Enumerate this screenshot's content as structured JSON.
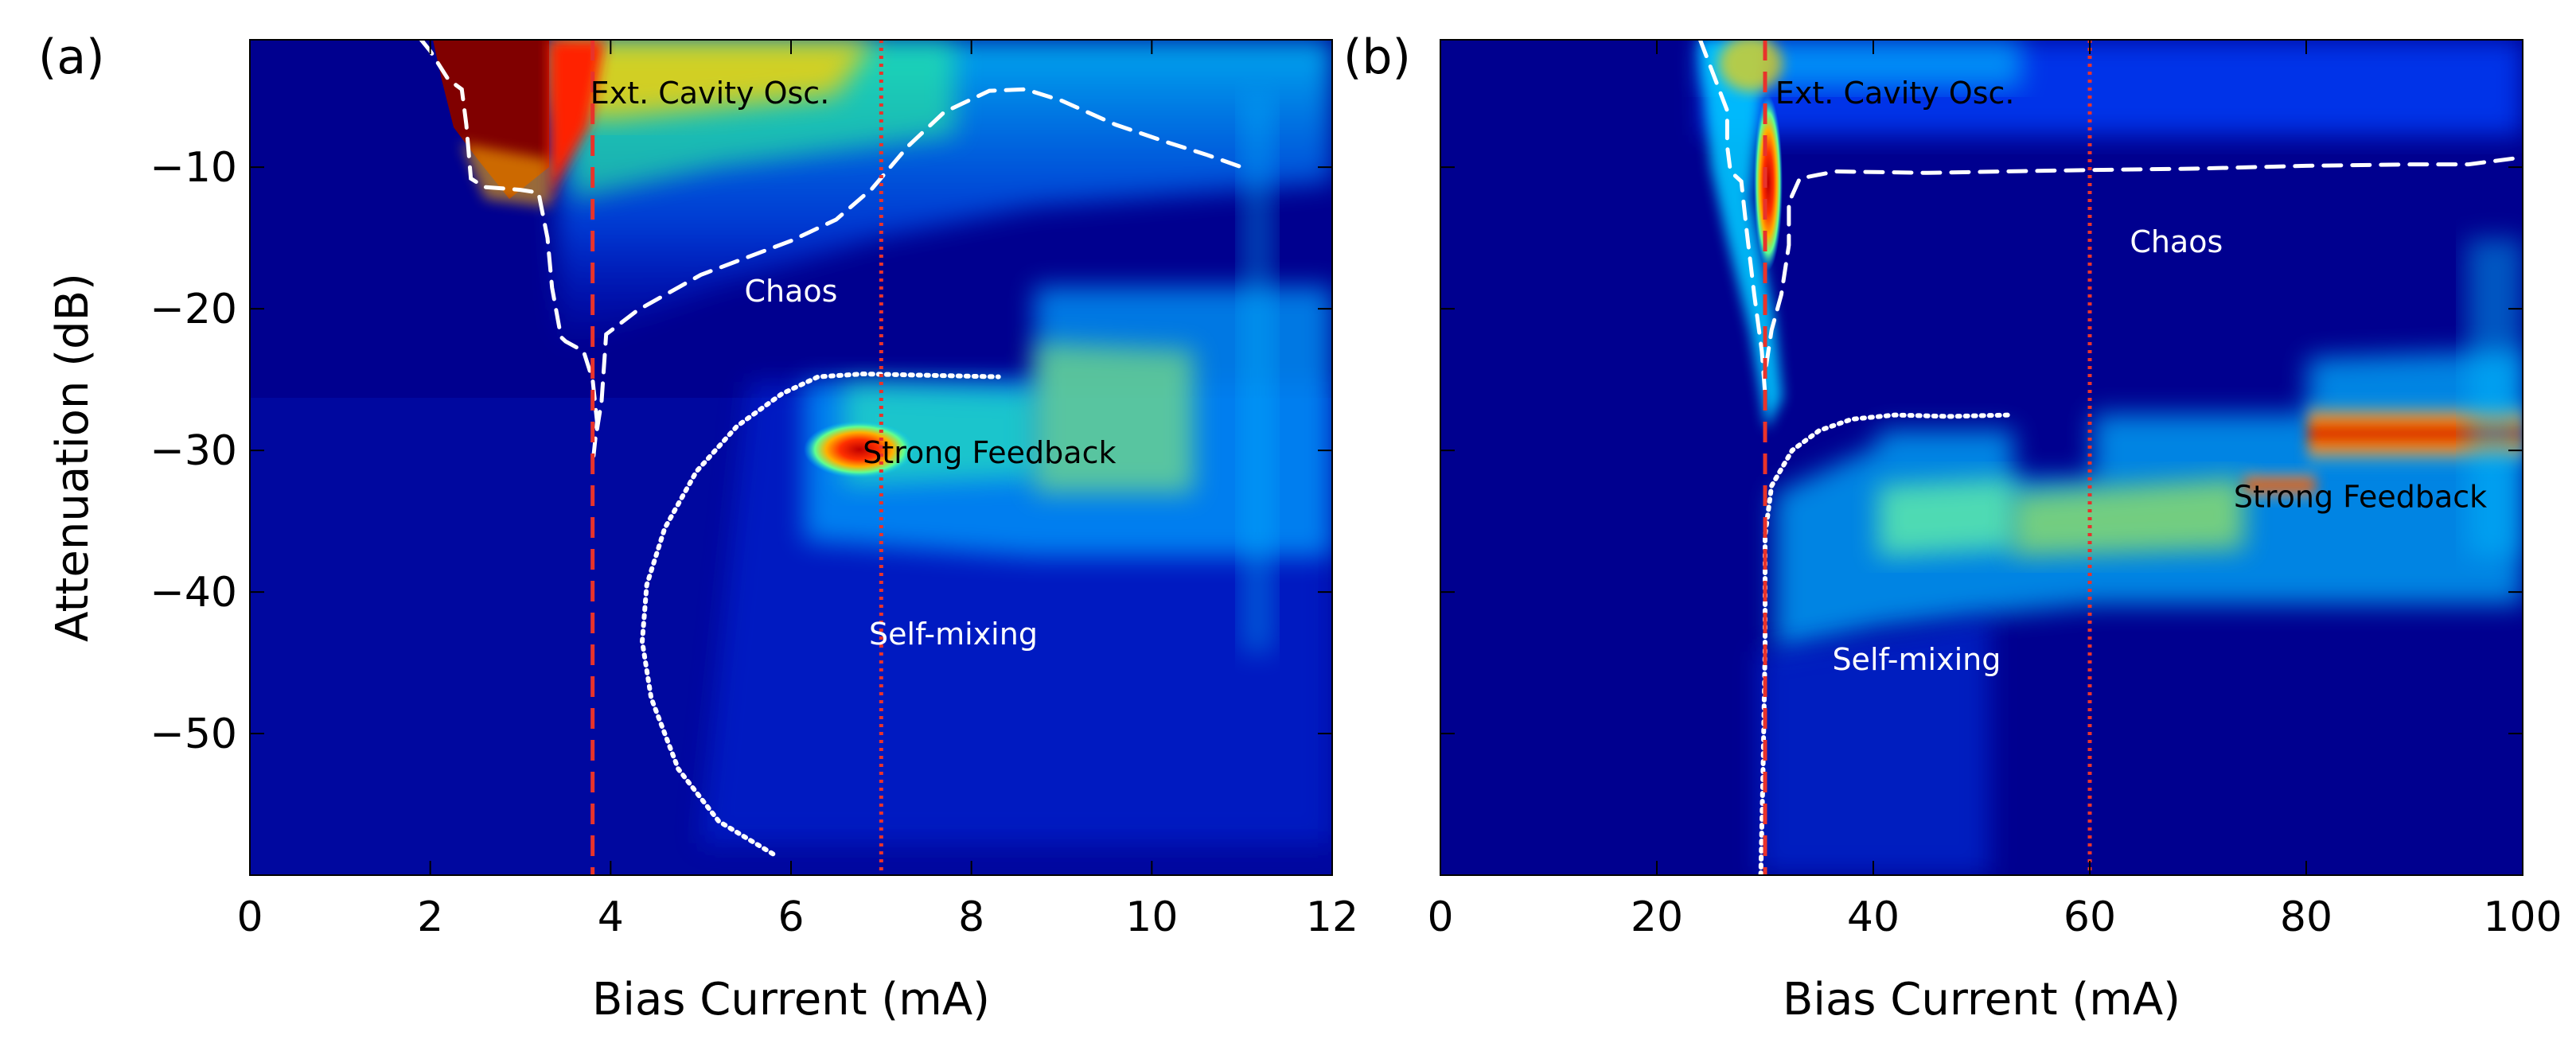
{
  "chart_data": [
    {
      "type": "heatmap",
      "panel_label": "(a)",
      "title": "",
      "xlabel": "Bias Current (mA)",
      "ylabel": "Attenuation (dB)",
      "xlim": [
        0,
        12
      ],
      "ylim": [
        -60,
        -1
      ],
      "xticks": [
        0,
        2,
        4,
        6,
        8,
        10,
        12
      ],
      "xtick_labels": [
        "0",
        "2",
        "4",
        "6",
        "8",
        "10",
        "12"
      ],
      "yticks": [
        -10,
        -20,
        -30,
        -40,
        -50
      ],
      "ytick_labels": [
        "−10",
        "−20",
        "−30",
        "−40",
        "−50"
      ],
      "colormap": "jet",
      "colors": {
        "low": "#00008f",
        "high": "#800000",
        "dashed_red": "#e8332b",
        "white_lines": "#ffffff"
      },
      "regions": [
        {
          "label": "Ext. Cavity Osc.",
          "x": 5.1,
          "y": -5.5,
          "color": "#000000"
        },
        {
          "label": "Chaos",
          "x": 6.0,
          "y": -19.5,
          "color": "#ffffff"
        },
        {
          "label": "Strong Feedback",
          "x": 8.2,
          "y": -30.9,
          "color": "#000000"
        },
        {
          "label": "Self-mixing",
          "x": 7.8,
          "y": -43.7,
          "color": "#ffffff"
        }
      ],
      "threshold_dashed_x": 3.8,
      "threshold_dotted_x": 7.0,
      "boundaries": [
        {
          "name": "chaos-boundary-upper",
          "style": "dashed",
          "points": [
            [
              1.9,
              -1
            ],
            [
              2.0,
              -1.8
            ],
            [
              2.2,
              -3.8
            ],
            [
              2.35,
              -4.5
            ],
            [
              2.4,
              -7
            ],
            [
              2.45,
              -10.8
            ],
            [
              2.6,
              -11.4
            ],
            [
              3.0,
              -11.6
            ],
            [
              3.2,
              -11.8
            ],
            [
              3.3,
              -15
            ],
            [
              3.35,
              -18.5
            ],
            [
              3.45,
              -22
            ],
            [
              3.5,
              -22.3
            ],
            [
              3.7,
              -23
            ],
            [
              3.8,
              -25
            ],
            [
              3.85,
              -28
            ],
            [
              3.8,
              -31
            ]
          ]
        },
        {
          "name": "chaos-boundary-lower",
          "style": "dashed",
          "points": [
            [
              3.85,
              -28.5
            ],
            [
              3.9,
              -26.5
            ],
            [
              3.95,
              -21.8
            ],
            [
              4.3,
              -20.1
            ],
            [
              5.0,
              -17.6
            ],
            [
              6.0,
              -15.2
            ],
            [
              6.5,
              -13.7
            ],
            [
              6.9,
              -11.5
            ],
            [
              7.3,
              -8.5
            ],
            [
              7.7,
              -6.1
            ],
            [
              8.2,
              -4.6
            ],
            [
              8.6,
              -4.5
            ],
            [
              9.0,
              -5.3
            ],
            [
              9.6,
              -7
            ],
            [
              10.2,
              -8.3
            ],
            [
              10.6,
              -9.1
            ],
            [
              11.0,
              -10.0
            ]
          ]
        },
        {
          "name": "strong-feedback-boundary",
          "style": "dotted",
          "points": [
            [
              5.8,
              -58.5
            ],
            [
              5.2,
              -56.2
            ],
            [
              4.75,
              -52.5
            ],
            [
              4.45,
              -47.5
            ],
            [
              4.35,
              -43.5
            ],
            [
              4.4,
              -39.5
            ],
            [
              4.6,
              -35.5
            ],
            [
              4.95,
              -31.5
            ],
            [
              5.4,
              -28.3
            ],
            [
              5.9,
              -26
            ],
            [
              6.3,
              -24.8
            ],
            [
              6.8,
              -24.6
            ],
            [
              8.3,
              -24.8
            ]
          ]
        }
      ]
    },
    {
      "type": "heatmap",
      "panel_label": "(b)",
      "title": "",
      "xlabel": "Bias Current (mA)",
      "ylabel": "",
      "xlim": [
        0,
        100
      ],
      "ylim": [
        -60,
        -1
      ],
      "xticks": [
        0,
        20,
        40,
        60,
        80,
        100
      ],
      "xtick_labels": [
        "0",
        "20",
        "40",
        "60",
        "80",
        "100"
      ],
      "yticks": [
        -10,
        -20,
        -30,
        -40,
        -50
      ],
      "ytick_labels": [],
      "colormap": "jet",
      "colors": {
        "low": "#00008f",
        "high": "#800000",
        "dashed_red": "#e8332b",
        "white_lines": "#ffffff"
      },
      "regions": [
        {
          "label": "Ext. Cavity Osc.",
          "x": 42,
          "y": -5.5,
          "color": "#000000"
        },
        {
          "label": "Chaos",
          "x": 68,
          "y": -16,
          "color": "#ffffff"
        },
        {
          "label": "Strong Feedback",
          "x": 85,
          "y": -34,
          "color": "#000000"
        },
        {
          "label": "Self-mixing",
          "x": 44,
          "y": -45.5,
          "color": "#ffffff"
        }
      ],
      "threshold_dashed_x": 30,
      "threshold_dotted_x": 60,
      "boundaries": [
        {
          "name": "chaos-boundary-upper",
          "style": "dashed",
          "points": [
            [
              24,
              -1
            ],
            [
              25,
              -3
            ],
            [
              26.5,
              -6
            ],
            [
              26.5,
              -8.5
            ],
            [
              26.8,
              -10.3
            ],
            [
              27.8,
              -11
            ],
            [
              28.3,
              -14.5
            ],
            [
              29,
              -19
            ],
            [
              29.7,
              -23
            ],
            [
              30,
              -26
            ]
          ]
        },
        {
          "name": "chaos-boundary-lower",
          "style": "dashed",
          "points": [
            [
              30.1,
              -24
            ],
            [
              30.6,
              -21.5
            ],
            [
              31.5,
              -19
            ],
            [
              32.2,
              -15.5
            ],
            [
              32.2,
              -12.5
            ],
            [
              33.2,
              -10.8
            ],
            [
              36.5,
              -10.3
            ],
            [
              45,
              -10.4
            ],
            [
              52,
              -10.3
            ],
            [
              60,
              -10.2
            ],
            [
              70,
              -10.1
            ],
            [
              80,
              -9.9
            ],
            [
              90,
              -9.8
            ],
            [
              95,
              -9.8
            ],
            [
              100,
              -9.3
            ]
          ]
        },
        {
          "name": "strong-feedback-boundary",
          "style": "dotted",
          "points": [
            [
              29.6,
              -60
            ],
            [
              29.8,
              -53
            ],
            [
              30,
              -44
            ],
            [
              30,
              -36
            ],
            [
              30.6,
              -32.5
            ],
            [
              32.5,
              -30
            ],
            [
              35,
              -28.6
            ],
            [
              38,
              -27.8
            ],
            [
              42,
              -27.5
            ],
            [
              47,
              -27.6
            ],
            [
              52.5,
              -27.5
            ]
          ]
        }
      ]
    }
  ]
}
